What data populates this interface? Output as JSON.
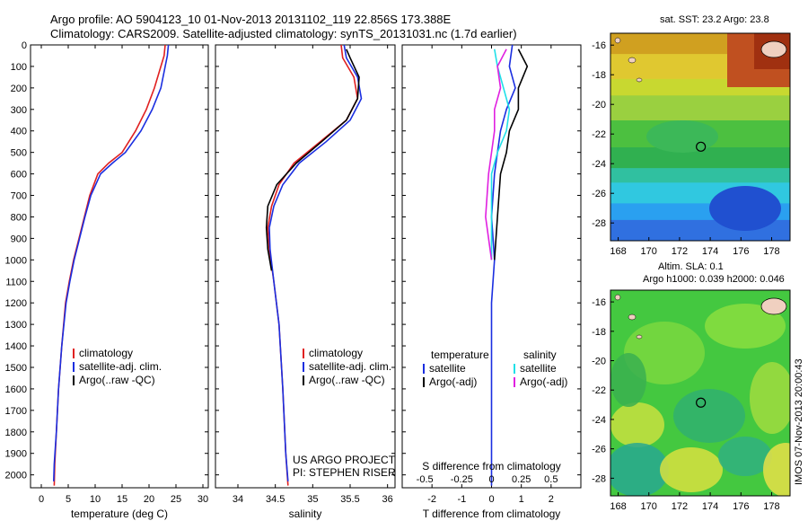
{
  "header": {
    "line1": "Argo profile: AO 5904123_10 01-Nov-2013 20131102_119 22.856S 173.388E",
    "line2": "Climatology: CARS2009. Satellite-adjusted climatology: synTS_20131031.nc (1.7d earlier)"
  },
  "credits": {
    "project": "US ARGO PROJECT",
    "pi": "PI: STEPHEN RISER",
    "stamp": "IMOS 07-Nov-2013 20:00:43"
  },
  "colors": {
    "climatology": "#e02020",
    "satellite": "#1a2ee0",
    "argo": "#000000",
    "sat_salinity": "#20e0e8",
    "argo_salinity": "#e020e0"
  },
  "maps": {
    "sst_title": "sat. SST: 23.2  Argo: 23.8",
    "sla_title1": "Altim. SLA: 0.1",
    "sla_title2": "Argo h1000: 0.039  h2000: 0.046",
    "x_ticks": [
      "168",
      "170",
      "172",
      "174",
      "176",
      "178"
    ],
    "y_ticks": [
      "-16",
      "-18",
      "-20",
      "-22",
      "-24",
      "-26",
      "-28"
    ],
    "marker": {
      "lon": 173.388,
      "lat": -22.856
    }
  },
  "chart_data": [
    {
      "type": "line",
      "xlabel": "temperature (deg C)",
      "ylabel": "",
      "xlim": [
        -2,
        31
      ],
      "ylim": [
        2060,
        0
      ],
      "x_ticks": [
        0,
        5,
        10,
        15,
        20,
        25,
        30
      ],
      "y_ticks": [
        0,
        100,
        200,
        300,
        400,
        500,
        600,
        700,
        800,
        900,
        1000,
        1100,
        1200,
        1300,
        1400,
        1500,
        1600,
        1700,
        1800,
        1900,
        2000
      ],
      "legend": [
        "climatology",
        "satellite-adj. clim.",
        "Argo(..raw -QC)"
      ],
      "series": [
        {
          "name": "climatology",
          "x": [
            23.0,
            22.8,
            22.2,
            21.0,
            19.5,
            17.5,
            15.0,
            12.5,
            10.5,
            9.0,
            8.0,
            7.0,
            6.0,
            5.2,
            4.5,
            3.8,
            3.2,
            2.8,
            2.5,
            2.4
          ],
          "y": [
            0,
            50,
            100,
            200,
            300,
            400,
            500,
            550,
            600,
            700,
            800,
            900,
            1000,
            1100,
            1200,
            1400,
            1600,
            1800,
            1950,
            2050
          ]
        },
        {
          "name": "satellite-adj. clim.",
          "x": [
            23.6,
            23.4,
            23.0,
            22.2,
            20.6,
            18.5,
            15.6,
            13.2,
            11.0,
            9.2,
            8.1,
            7.1,
            6.1,
            5.3,
            4.6,
            3.8,
            3.2,
            2.8,
            2.4,
            2.3
          ],
          "y": [
            0,
            50,
            100,
            200,
            300,
            400,
            500,
            550,
            600,
            700,
            800,
            900,
            1000,
            1100,
            1200,
            1400,
            1600,
            1800,
            1950,
            2030
          ]
        }
      ]
    },
    {
      "type": "line",
      "xlabel": "salinity",
      "xlim": [
        33.7,
        36.1
      ],
      "ylim": [
        2060,
        0
      ],
      "x_ticks": [
        34,
        34.5,
        35,
        35.5,
        36
      ],
      "legend": [
        "climatology",
        "satellite-adj. clim.",
        "Argo(..raw -QC)"
      ],
      "series": [
        {
          "name": "climatology",
          "x": [
            35.38,
            35.4,
            35.55,
            35.6,
            35.45,
            35.1,
            34.75,
            34.55,
            34.45,
            34.4,
            34.42,
            34.48,
            34.55,
            34.6,
            34.64,
            34.67
          ],
          "y": [
            0,
            60,
            150,
            250,
            350,
            450,
            550,
            650,
            750,
            850,
            950,
            1100,
            1300,
            1600,
            1900,
            2050
          ]
        },
        {
          "name": "satellite-adj. clim.",
          "x": [
            35.42,
            35.45,
            35.6,
            35.65,
            35.5,
            35.18,
            34.82,
            34.6,
            34.48,
            34.42,
            34.43,
            34.48,
            34.55,
            34.6,
            34.64,
            34.67
          ],
          "y": [
            0,
            60,
            150,
            250,
            350,
            450,
            550,
            650,
            750,
            850,
            950,
            1100,
            1300,
            1600,
            1900,
            2030
          ]
        },
        {
          "name": "Argo(..raw -QC)",
          "x": [
            35.45,
            35.5,
            35.62,
            35.6,
            35.45,
            35.12,
            34.78,
            34.52,
            34.4,
            34.38,
            34.4,
            34.45
          ],
          "y": [
            20,
            60,
            150,
            250,
            350,
            450,
            550,
            650,
            750,
            850,
            950,
            1050
          ]
        }
      ]
    },
    {
      "type": "line",
      "xlabel": "T difference from climatology",
      "title": "S difference from climatology",
      "xlim": [
        -3,
        3
      ],
      "ylim": [
        2060,
        0
      ],
      "x_ticks": [
        -2,
        -1,
        0,
        1,
        2
      ],
      "x_ticks_top": [
        "-0.5",
        "-0.25",
        "0",
        "0.25",
        "0.5"
      ],
      "legend": [
        {
          "group": "temperature",
          "items": [
            "satellite",
            "Argo(-adj)"
          ]
        },
        {
          "group": "salinity",
          "items": [
            "satellite",
            "Argo(-adj)"
          ]
        }
      ],
      "series": [
        {
          "name": "temperature satellite",
          "x": [
            0.7,
            0.6,
            0.8,
            0.5,
            0.3,
            0.2,
            0.1,
            0.0,
            0.1,
            0.0,
            0.0,
            0.0
          ],
          "y": [
            0,
            100,
            200,
            300,
            400,
            500,
            600,
            800,
            1000,
            1200,
            1600,
            2050
          ]
        },
        {
          "name": "temperature Argo(-adj)",
          "x": [
            0.9,
            1.2,
            0.9,
            0.9,
            0.6,
            0.5,
            0.3,
            0.2,
            0.1
          ],
          "y": [
            20,
            100,
            200,
            300,
            400,
            500,
            600,
            800,
            1000
          ]
        },
        {
          "name": "salinity satellite",
          "x": [
            0.1,
            0.2,
            0.4,
            0.6,
            0.5,
            0.2,
            0.0,
            0.0,
            0.0
          ],
          "y": [
            20,
            100,
            200,
            300,
            400,
            500,
            600,
            800,
            1000
          ]
        },
        {
          "name": "salinity Argo(-adj)",
          "x": [
            0.5,
            0.2,
            0.3,
            0.1,
            0.1,
            0.0,
            -0.1,
            -0.2,
            0.0
          ],
          "y": [
            20,
            100,
            200,
            300,
            400,
            500,
            600,
            800,
            1000
          ]
        }
      ]
    }
  ]
}
